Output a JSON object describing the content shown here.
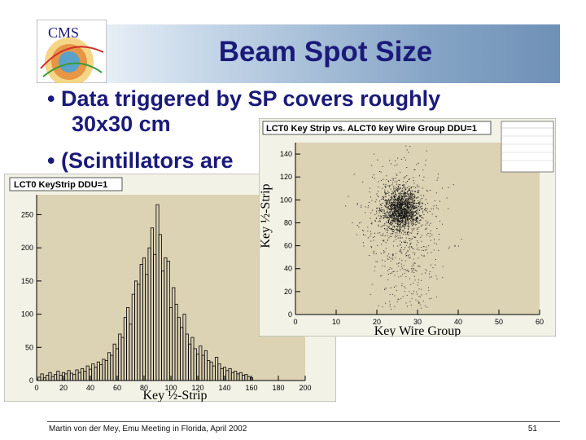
{
  "slide": {
    "title": "Beam Spot Size",
    "logo_text": "CMS",
    "bullets": [
      "Data triggered by SP covers roughly",
      "30x30 cm",
      "(Scintillators are"
    ],
    "footer_left": "Martin von der Mey, Emu Meeting in Florida, April 2002",
    "footer_right": "51"
  },
  "colors": {
    "title_text": "#1a1a7a",
    "plot_bg": "#dcd2b4",
    "frame_bg": "#f2f2e6"
  },
  "chart_data": [
    {
      "type": "bar",
      "title": "LCT0 KeyStrip DDU=1",
      "xlabel": "Key ½-Strip",
      "ylabel": "",
      "xlim": [
        0,
        200
      ],
      "ylim": [
        0,
        280
      ],
      "x_ticks": [
        0,
        20,
        40,
        60,
        80,
        100,
        120,
        140,
        160,
        180,
        200
      ],
      "y_ticks": [
        0,
        50,
        100,
        150,
        200,
        250
      ],
      "bin_width": 2,
      "x": [
        2,
        4,
        6,
        8,
        10,
        12,
        14,
        16,
        18,
        20,
        22,
        24,
        26,
        28,
        30,
        32,
        34,
        36,
        38,
        40,
        42,
        44,
        46,
        48,
        50,
        52,
        54,
        56,
        58,
        60,
        62,
        64,
        66,
        68,
        70,
        72,
        74,
        76,
        78,
        80,
        82,
        84,
        86,
        88,
        90,
        92,
        94,
        96,
        98,
        100,
        102,
        104,
        106,
        108,
        110,
        112,
        114,
        116,
        118,
        120,
        122,
        124,
        126,
        128,
        130,
        132,
        134,
        136,
        138,
        140,
        142,
        144,
        146,
        148,
        150,
        152,
        154,
        156,
        158,
        160
      ],
      "values": [
        5,
        10,
        4,
        8,
        12,
        6,
        9,
        14,
        8,
        12,
        10,
        15,
        11,
        9,
        16,
        12,
        18,
        14,
        22,
        17,
        25,
        20,
        28,
        24,
        32,
        30,
        42,
        38,
        55,
        48,
        70,
        65,
        95,
        110,
        85,
        130,
        150,
        145,
        175,
        185,
        160,
        200,
        230,
        190,
        265,
        220,
        165,
        185,
        180,
        110,
        140,
        115,
        95,
        80,
        100,
        70,
        55,
        65,
        48,
        40,
        52,
        38,
        45,
        30,
        28,
        22,
        35,
        25,
        18,
        20,
        15,
        18,
        12,
        14,
        10,
        12,
        8,
        9,
        6,
        4
      ]
    },
    {
      "type": "scatter",
      "title": "LCT0 Key Strip vs. ALCT0 key Wire Group DDU=1",
      "xlabel": "Key Wire Group",
      "ylabel": "Key ½-Strip",
      "xlim": [
        0,
        60
      ],
      "ylim": [
        0,
        150
      ],
      "x_ticks": [
        0,
        10,
        20,
        30,
        40,
        50,
        60
      ],
      "y_ticks": [
        0,
        20,
        40,
        60,
        80,
        100,
        120,
        140
      ],
      "density": "points concentrated around key wire group ~26 and key half-strip ~92, with a broad sparse tail"
    }
  ]
}
